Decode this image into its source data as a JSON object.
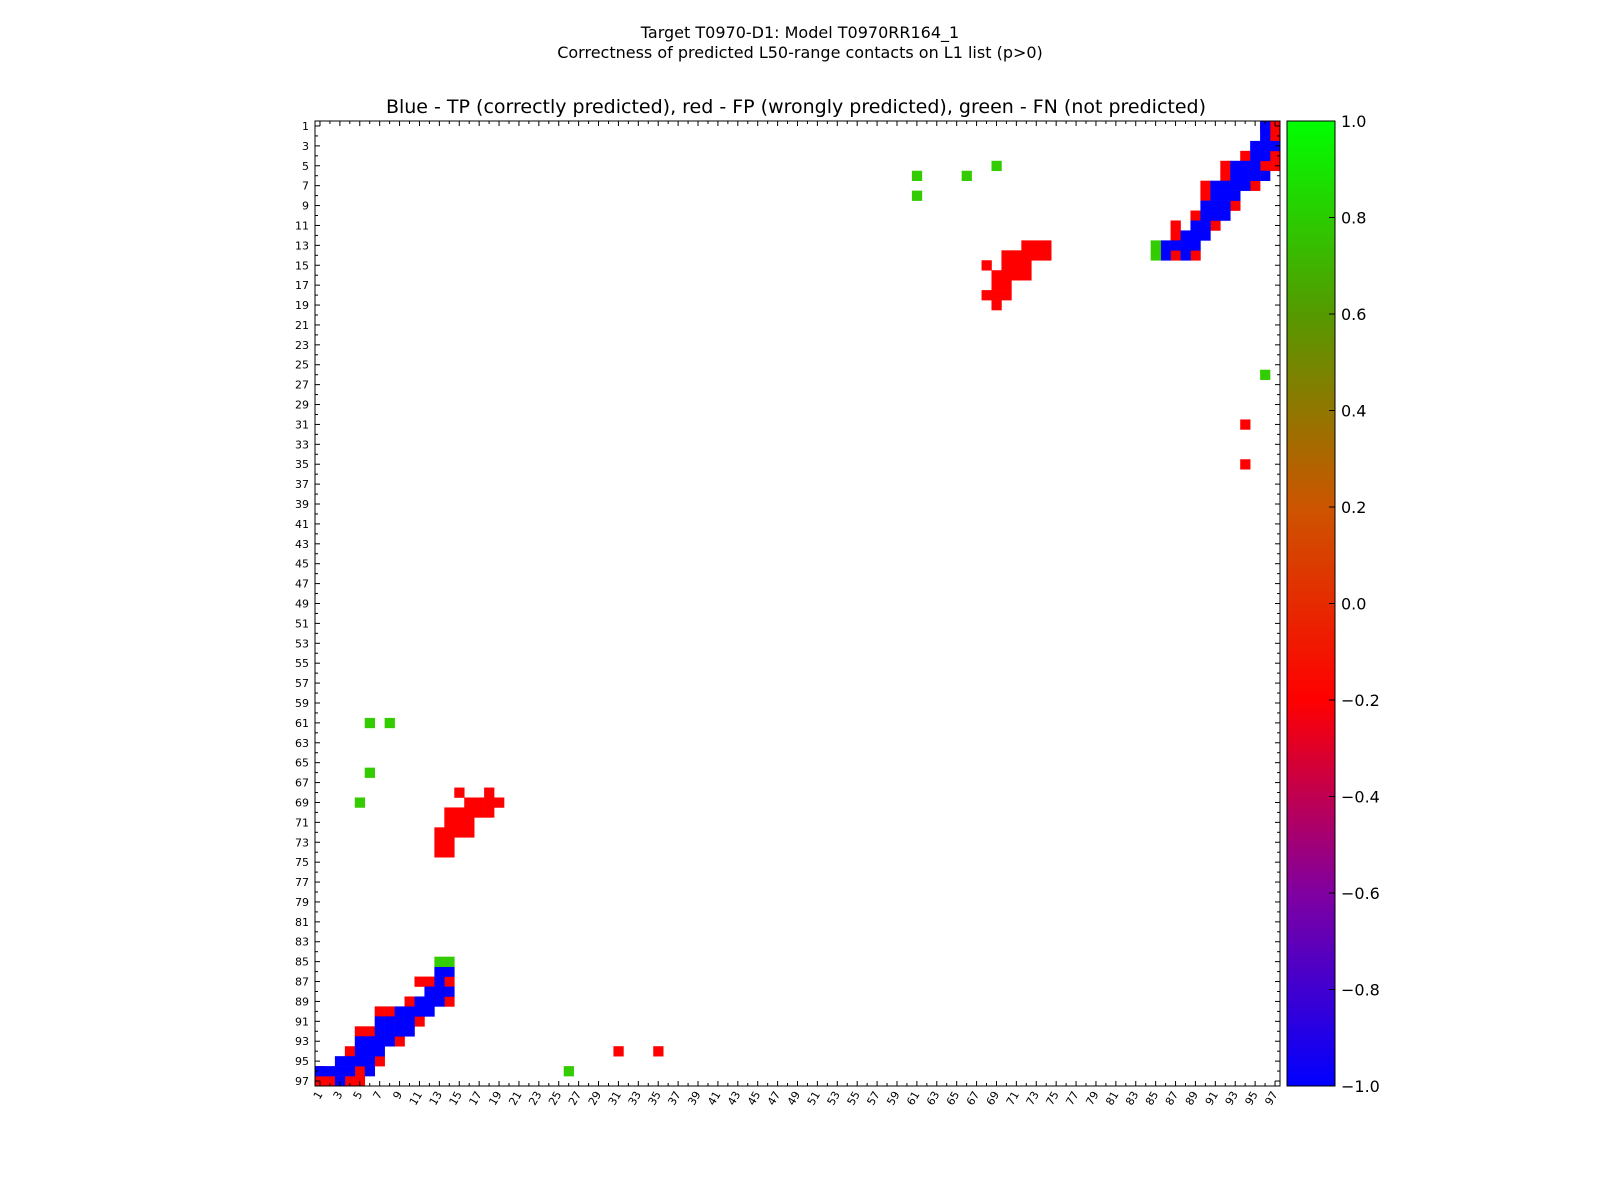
{
  "figure": {
    "title_line1": "Target T0970-D1: Model T0970RR164_1",
    "title_line2": "Correctness of predicted L50-range contacts on L1 list (p>0)",
    "axes_title": "Blue - TP (correctly predicted), red - FP (wrongly predicted), green - FN (not predicted)"
  },
  "colors": {
    "tp": "#0000ff",
    "fp": "#ff0000",
    "fn": "#33cc00",
    "colormap_stops": [
      "#0000ff",
      "#8000a0",
      "#ff0000",
      "#cc5500",
      "#559900",
      "#00ff00"
    ]
  },
  "chart_data": {
    "type": "heatmap",
    "xlim": [
      1,
      97
    ],
    "ylim": [
      1,
      97
    ],
    "y_inverted": true,
    "x_tick_labels": [
      "1",
      "3",
      "5",
      "7",
      "9",
      "11",
      "13",
      "15",
      "17",
      "19",
      "21",
      "23",
      "25",
      "27",
      "29",
      "31",
      "33",
      "35",
      "37",
      "39",
      "41",
      "43",
      "45",
      "47",
      "49",
      "51",
      "53",
      "55",
      "57",
      "59",
      "61",
      "63",
      "65",
      "67",
      "69",
      "71",
      "73",
      "75",
      "77",
      "79",
      "81",
      "83",
      "85",
      "87",
      "89",
      "91",
      "93",
      "95",
      "97"
    ],
    "y_tick_labels": [
      "1",
      "3",
      "5",
      "7",
      "9",
      "11",
      "13",
      "15",
      "17",
      "19",
      "21",
      "23",
      "25",
      "27",
      "29",
      "31",
      "33",
      "35",
      "37",
      "39",
      "41",
      "43",
      "45",
      "47",
      "49",
      "51",
      "53",
      "55",
      "57",
      "59",
      "61",
      "63",
      "65",
      "67",
      "69",
      "71",
      "73",
      "75",
      "77",
      "79",
      "81",
      "83",
      "85",
      "87",
      "89",
      "91",
      "93",
      "95",
      "97"
    ],
    "colorbar": {
      "range": [
        -1.0,
        1.0
      ],
      "tick_labels": [
        "1.0",
        "0.8",
        "0.6",
        "0.4",
        "0.2",
        "0.0",
        "−0.2",
        "−0.4",
        "−0.6",
        "−0.8",
        "−1.0"
      ]
    },
    "cell_values": {
      "tp": -1.0,
      "fp": 0.0,
      "fn": 1.0
    },
    "contacts_lower": {
      "tp": [
        [
          1,
          96
        ],
        [
          2,
          96
        ],
        [
          3,
          95
        ],
        [
          3,
          96
        ],
        [
          3,
          97
        ],
        [
          4,
          95
        ],
        [
          4,
          96
        ],
        [
          5,
          93
        ],
        [
          5,
          94
        ],
        [
          5,
          95
        ],
        [
          6,
          93
        ],
        [
          6,
          94
        ],
        [
          6,
          95
        ],
        [
          6,
          96
        ],
        [
          7,
          91
        ],
        [
          7,
          92
        ],
        [
          7,
          93
        ],
        [
          7,
          94
        ],
        [
          8,
          91
        ],
        [
          8,
          92
        ],
        [
          8,
          93
        ],
        [
          9,
          90
        ],
        [
          9,
          91
        ],
        [
          9,
          92
        ],
        [
          10,
          90
        ],
        [
          10,
          91
        ],
        [
          10,
          92
        ],
        [
          11,
          89
        ],
        [
          11,
          90
        ],
        [
          12,
          88
        ],
        [
          12,
          89
        ],
        [
          12,
          90
        ],
        [
          13,
          86
        ],
        [
          13,
          87
        ],
        [
          13,
          88
        ],
        [
          13,
          89
        ],
        [
          14,
          86
        ],
        [
          14,
          88
        ]
      ],
      "fp": [
        [
          1,
          96
        ],
        [
          1,
          97
        ],
        [
          2,
          97
        ],
        [
          4,
          94
        ],
        [
          4,
          97
        ],
        [
          5,
          92
        ],
        [
          5,
          96
        ],
        [
          5,
          97
        ],
        [
          6,
          92
        ],
        [
          7,
          90
        ],
        [
          7,
          95
        ],
        [
          8,
          90
        ],
        [
          9,
          93
        ],
        [
          10,
          89
        ],
        [
          11,
          87
        ],
        [
          11,
          91
        ],
        [
          12,
          87
        ],
        [
          14,
          87
        ],
        [
          14,
          89
        ],
        [
          13,
          72
        ],
        [
          13,
          73
        ],
        [
          13,
          74
        ],
        [
          14,
          72
        ],
        [
          14,
          73
        ],
        [
          14,
          74
        ],
        [
          14,
          70
        ],
        [
          14,
          71
        ],
        [
          15,
          68
        ],
        [
          15,
          70
        ],
        [
          15,
          71
        ],
        [
          15,
          72
        ],
        [
          16,
          69
        ],
        [
          16,
          70
        ],
        [
          16,
          71
        ],
        [
          16,
          72
        ],
        [
          17,
          69
        ],
        [
          17,
          70
        ],
        [
          18,
          68
        ],
        [
          18,
          69
        ],
        [
          18,
          70
        ],
        [
          19,
          69
        ],
        [
          31,
          94
        ],
        [
          35,
          94
        ]
      ],
      "fn": [
        [
          13,
          85
        ],
        [
          14,
          85
        ],
        [
          26,
          96
        ],
        [
          6,
          61
        ],
        [
          8,
          61
        ],
        [
          6,
          66
        ],
        [
          5,
          69
        ]
      ]
    }
  }
}
